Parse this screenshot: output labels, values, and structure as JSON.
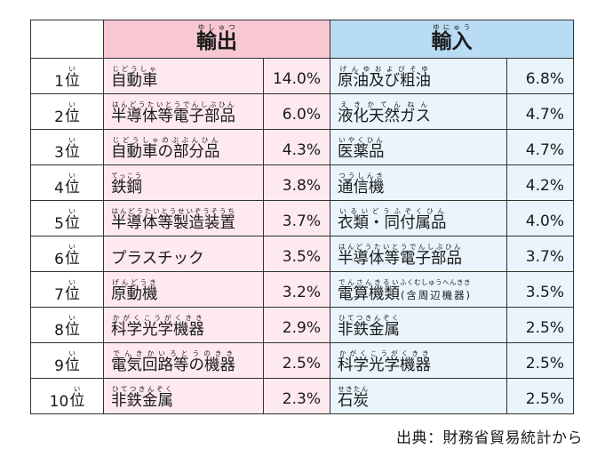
{
  "headers": {
    "export": {
      "word": "輸出",
      "reading": "ゆしゅつ"
    },
    "import": {
      "word": "輸入",
      "reading": "ゆにゅう"
    }
  },
  "rank_suffix": {
    "word": "位",
    "reading": "い"
  },
  "colors": {
    "export_header": "#f7c7d2",
    "export_cell": "#fde9ee",
    "import_header": "#b8dcf4",
    "import_cell": "#e9f4fc"
  },
  "rows": [
    {
      "rank": "1",
      "export": {
        "name": [
          [
            "自動車",
            "じどうしゃ"
          ]
        ],
        "pct": "14.0%"
      },
      "import": {
        "name": [
          [
            "原油及び粗油",
            "げんゆおよびそゆ"
          ]
        ],
        "pct": "6.8%"
      }
    },
    {
      "rank": "2",
      "export": {
        "name": [
          [
            "半導体等電子部品",
            "はんどうたいとうでんしぶひん"
          ]
        ],
        "pct": "6.0%"
      },
      "import": {
        "name": [
          [
            "液化天然ガス",
            "えきかてんねん"
          ]
        ],
        "pct": "4.7%"
      }
    },
    {
      "rank": "3",
      "export": {
        "name": [
          [
            "自動車の部分品",
            "じどうしゃのぶぶんひん"
          ]
        ],
        "pct": "4.3%"
      },
      "import": {
        "name": [
          [
            "医薬品",
            "いやくひん"
          ]
        ],
        "pct": "4.7%"
      }
    },
    {
      "rank": "4",
      "export": {
        "name": [
          [
            "鉄鋼",
            "てっこう"
          ]
        ],
        "pct": "3.8%"
      },
      "import": {
        "name": [
          [
            "通信機",
            "つうしんき"
          ]
        ],
        "pct": "4.2%"
      }
    },
    {
      "rank": "5",
      "export": {
        "name": [
          [
            "半導体等製造装置",
            "はんどうたいとうせいぞうそうち"
          ]
        ],
        "pct": "3.7%"
      },
      "import": {
        "name": [
          [
            "衣類・同付属品",
            "いるいどうふぞくひん"
          ]
        ],
        "pct": "4.0%"
      }
    },
    {
      "rank": "6",
      "export": {
        "name": [
          [
            "プラスチック",
            ""
          ]
        ],
        "pct": "3.5%"
      },
      "import": {
        "name": [
          [
            "半導体等電子部品",
            "はんどうたいとうでんしぶひん"
          ]
        ],
        "pct": "3.7%"
      }
    },
    {
      "rank": "7",
      "export": {
        "name": [
          [
            "原動機",
            "げんどうき"
          ]
        ],
        "pct": "3.2%"
      },
      "import": {
        "name": [
          [
            "電算機類",
            "でんさんきるい"
          ],
          [
            "(含周辺機器)",
            "ふくむしゅうへんきき"
          ]
        ],
        "pct": "3.5%"
      }
    },
    {
      "rank": "8",
      "export": {
        "name": [
          [
            "科学光学機器",
            "かがくこうがくきき"
          ]
        ],
        "pct": "2.9%"
      },
      "import": {
        "name": [
          [
            "非鉄金属",
            "ひてつきんぞく"
          ]
        ],
        "pct": "2.5%"
      }
    },
    {
      "rank": "9",
      "export": {
        "name": [
          [
            "電気回路等の機器",
            "でんきかいろとうのきき"
          ]
        ],
        "pct": "2.5%"
      },
      "import": {
        "name": [
          [
            "科学光学機器",
            "かがくこうがくきき"
          ]
        ],
        "pct": "2.5%"
      }
    },
    {
      "rank": "10",
      "export": {
        "name": [
          [
            "非鉄金属",
            "ひてつきんぞく"
          ]
        ],
        "pct": "2.3%"
      },
      "import": {
        "name": [
          [
            "石炭",
            "せきたん"
          ]
        ],
        "pct": "2.5%"
      }
    }
  ],
  "source": "出典：財務省貿易統計から"
}
